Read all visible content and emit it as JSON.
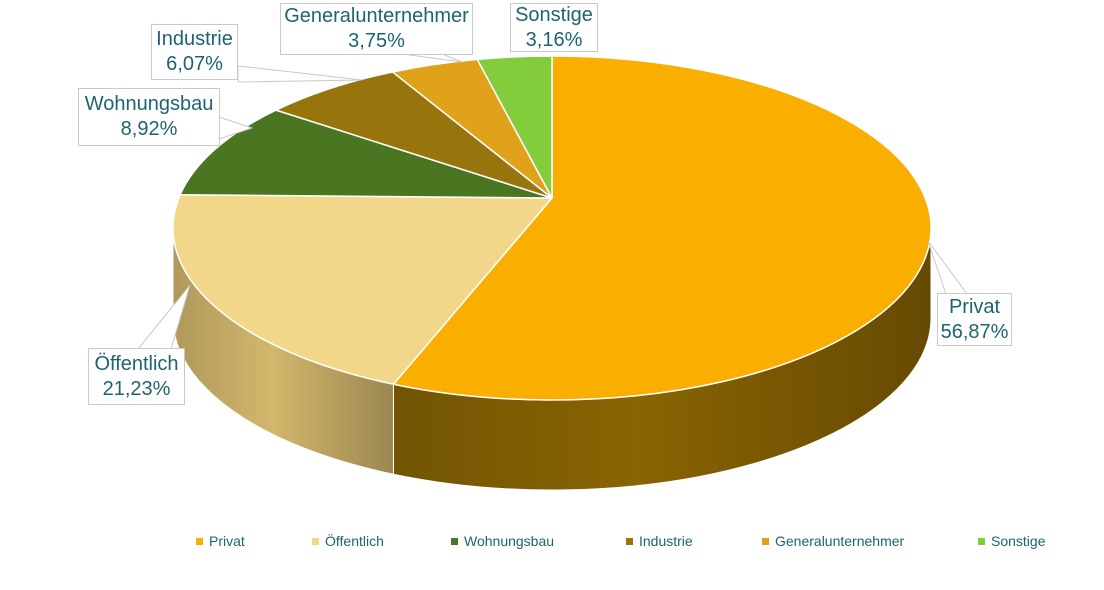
{
  "chart_data": {
    "type": "pie",
    "is_3d": true,
    "title": "",
    "legend_position": "bottom",
    "text_color": "#1E6470",
    "callout_border_color": "#C9C9C9",
    "seam_color": "#FFFFFF",
    "background_color": "#FFFFFF",
    "value_unit": "%",
    "categories": [
      "Privat",
      "Öffentlich",
      "Wohnungsbau",
      "Industrie",
      "Generalunternehmer",
      "Sonstige"
    ],
    "values": [
      56.87,
      21.23,
      8.92,
      6.07,
      3.75,
      3.16
    ],
    "slices": [
      {
        "id": "privat",
        "name": "Privat",
        "value": 56.87,
        "percent_label": "56,87%",
        "color": "#FAAE00",
        "side_color": "#7F5D03"
      },
      {
        "id": "oeffentlich",
        "name": "Öffentlich",
        "value": 21.23,
        "percent_label": "21,23%",
        "color": "#F2D78B",
        "side_color": "#C2A964"
      },
      {
        "id": "wohnungsbau",
        "name": "Wohnungsbau",
        "value": 8.92,
        "percent_label": "8,92%",
        "color": "#4A7521",
        "side_color": "#3A5C1A"
      },
      {
        "id": "industrie",
        "name": "Industrie",
        "value": 6.07,
        "percent_label": "6,07%",
        "color": "#98750C",
        "side_color": "#7A5E0A"
      },
      {
        "id": "generalunternehmer",
        "name": "Generalunternehmer",
        "value": 3.75,
        "percent_label": "3,75%",
        "color": "#DFA21A",
        "side_color": "#B28115"
      },
      {
        "id": "sonstige",
        "name": "Sonstige",
        "value": 3.16,
        "percent_label": "3,16%",
        "color": "#83CD3D",
        "side_color": "#69A431"
      }
    ]
  }
}
